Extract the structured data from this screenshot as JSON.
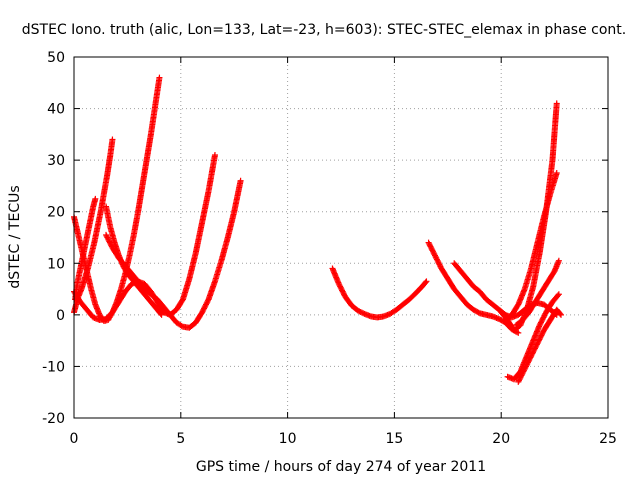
{
  "chart_data": {
    "type": "scatter",
    "title": "dSTEC Iono. truth (alic, Lon=133, Lat=-23, h=603): STEC-STEC_elemax in phase cont.",
    "xlabel": "GPS time / hours of day 274 of year 2011",
    "ylabel": "dSTEC  / TECUs",
    "xlim": [
      0,
      25
    ],
    "ylim": [
      -20,
      50
    ],
    "xticks": [
      0,
      5,
      10,
      15,
      20,
      25
    ],
    "yticks": [
      -20,
      -10,
      0,
      10,
      20,
      30,
      40,
      50
    ],
    "grid": true,
    "marker": "+",
    "color": "#ff0000",
    "series": [
      {
        "x": [
          0.0,
          0.1,
          0.2,
          0.35,
          0.5,
          0.65,
          0.8,
          0.95,
          1.1,
          1.25,
          1.4,
          1.55,
          1.7,
          1.8
        ],
        "y": [
          0.5,
          2.0,
          3.5,
          5.0,
          7.0,
          9.0,
          11.5,
          14.0,
          17.0,
          20.0,
          23.5,
          27.0,
          31.0,
          34.0
        ]
      },
      {
        "x": [
          0.05,
          0.15,
          0.3,
          0.45,
          0.6,
          0.75,
          0.9,
          1.0
        ],
        "y": [
          3.0,
          6.0,
          9.0,
          12.0,
          15.0,
          18.0,
          21.0,
          22.5
        ]
      },
      {
        "x": [
          0.0,
          0.2,
          0.4,
          0.6,
          0.8,
          1.0,
          1.2,
          1.4,
          1.6,
          1.8,
          2.0,
          2.2,
          2.4,
          2.6,
          2.8,
          3.0,
          3.2,
          3.4,
          3.6,
          3.8,
          4.0
        ],
        "y": [
          19.0,
          15.5,
          12.0,
          8.5,
          5.0,
          2.0,
          0.0,
          -1.2,
          -1.0,
          0.5,
          2.5,
          5.0,
          8.0,
          11.5,
          15.5,
          20.0,
          25.0,
          30.0,
          35.0,
          40.5,
          46.0
        ]
      },
      {
        "x": [
          0.0,
          0.3,
          0.6,
          0.9,
          1.2,
          1.5,
          1.8,
          2.1,
          2.4,
          2.7,
          3.0,
          3.3,
          3.6,
          3.9,
          4.2,
          4.5,
          4.8,
          5.1,
          5.4,
          5.7,
          6.0,
          6.3,
          6.6
        ],
        "y": [
          4.5,
          2.5,
          1.0,
          -0.5,
          -1.0,
          -0.8,
          0.5,
          2.5,
          4.5,
          6.0,
          6.5,
          6.0,
          4.5,
          2.5,
          0.5,
          0.0,
          1.0,
          3.0,
          7.0,
          12.0,
          18.0,
          24.0,
          31.0
        ]
      },
      {
        "x": [
          1.5,
          1.8,
          2.1,
          2.4,
          2.7,
          3.0,
          3.3,
          3.6,
          3.9,
          4.2,
          4.5,
          4.8,
          5.1,
          5.4,
          5.7,
          6.0,
          6.3,
          6.6,
          6.9,
          7.2,
          7.5,
          7.8
        ],
        "y": [
          15.5,
          13.0,
          11.0,
          9.5,
          8.0,
          6.5,
          5.0,
          4.0,
          3.0,
          1.5,
          0.0,
          -1.5,
          -2.3,
          -2.5,
          -1.5,
          0.5,
          3.0,
          6.5,
          10.5,
          15.0,
          20.0,
          26.0
        ]
      },
      {
        "x": [
          1.5,
          1.7,
          1.9,
          2.1,
          2.3,
          2.5,
          2.7,
          2.9,
          3.1,
          3.3,
          3.5,
          3.7,
          3.9,
          4.1
        ],
        "y": [
          21.0,
          17.0,
          14.0,
          11.5,
          9.5,
          8.0,
          7.0,
          6.0,
          5.0,
          4.0,
          3.0,
          2.0,
          1.0,
          0.0
        ]
      },
      {
        "x": [
          12.1,
          12.4,
          12.7,
          13.0,
          13.3,
          13.6,
          13.9,
          14.2,
          14.5,
          14.8,
          15.1,
          15.4,
          15.7,
          16.0,
          16.3,
          16.5
        ],
        "y": [
          9.0,
          6.0,
          3.5,
          1.8,
          0.8,
          0.2,
          -0.3,
          -0.5,
          -0.3,
          0.2,
          1.0,
          2.0,
          3.0,
          4.2,
          5.5,
          6.5
        ]
      },
      {
        "x": [
          16.6,
          16.9,
          17.2,
          17.5,
          17.8,
          18.1,
          18.4,
          18.7,
          19.0,
          19.3,
          19.6,
          19.9,
          20.2,
          20.5,
          20.8
        ],
        "y": [
          14.0,
          11.5,
          9.0,
          7.0,
          5.0,
          3.5,
          2.0,
          1.0,
          0.3,
          0.0,
          -0.3,
          -0.8,
          -1.5,
          -2.8,
          -3.5
        ]
      },
      {
        "x": [
          17.8,
          18.1,
          18.4,
          18.7,
          19.0,
          19.3,
          19.6,
          19.9,
          20.2,
          20.5,
          20.8,
          21.1,
          21.4,
          21.7,
          22.0,
          22.3,
          22.6
        ],
        "y": [
          10.0,
          8.5,
          7.0,
          5.5,
          4.5,
          3.0,
          2.0,
          1.0,
          0.0,
          -0.5,
          0.0,
          1.0,
          2.0,
          2.3,
          2.0,
          1.0,
          0.0
        ]
      },
      {
        "x": [
          20.0,
          20.3,
          20.6,
          20.9,
          21.2,
          21.5,
          21.8,
          22.1,
          22.4,
          22.6
        ],
        "y": [
          0.5,
          -1.0,
          -3.0,
          -2.0,
          1.0,
          5.5,
          12.0,
          20.0,
          30.0,
          41.0
        ]
      },
      {
        "x": [
          20.2,
          20.5,
          20.8,
          21.1,
          21.4,
          21.7,
          22.0,
          22.3,
          22.6
        ],
        "y": [
          -1.0,
          0.0,
          2.0,
          5.0,
          9.0,
          14.0,
          19.0,
          23.5,
          27.5
        ]
      },
      {
        "x": [
          20.3,
          20.6,
          20.9,
          21.2,
          21.5,
          21.8,
          22.1,
          22.4,
          22.7
        ],
        "y": [
          -12.0,
          -12.5,
          -11.0,
          -8.0,
          -5.0,
          -2.0,
          0.5,
          2.5,
          4.0
        ]
      },
      {
        "x": [
          20.8,
          21.1,
          21.4,
          21.7,
          22.0,
          22.3,
          22.6,
          22.8
        ],
        "y": [
          -13.0,
          -10.5,
          -8.0,
          -5.5,
          -3.0,
          -1.0,
          1.0,
          0.0
        ]
      },
      {
        "x": [
          20.7,
          21.0,
          21.3,
          21.6,
          21.9,
          22.2,
          22.5,
          22.7
        ],
        "y": [
          -2.0,
          -1.0,
          0.5,
          2.5,
          4.5,
          6.5,
          8.5,
          10.5
        ]
      }
    ]
  }
}
